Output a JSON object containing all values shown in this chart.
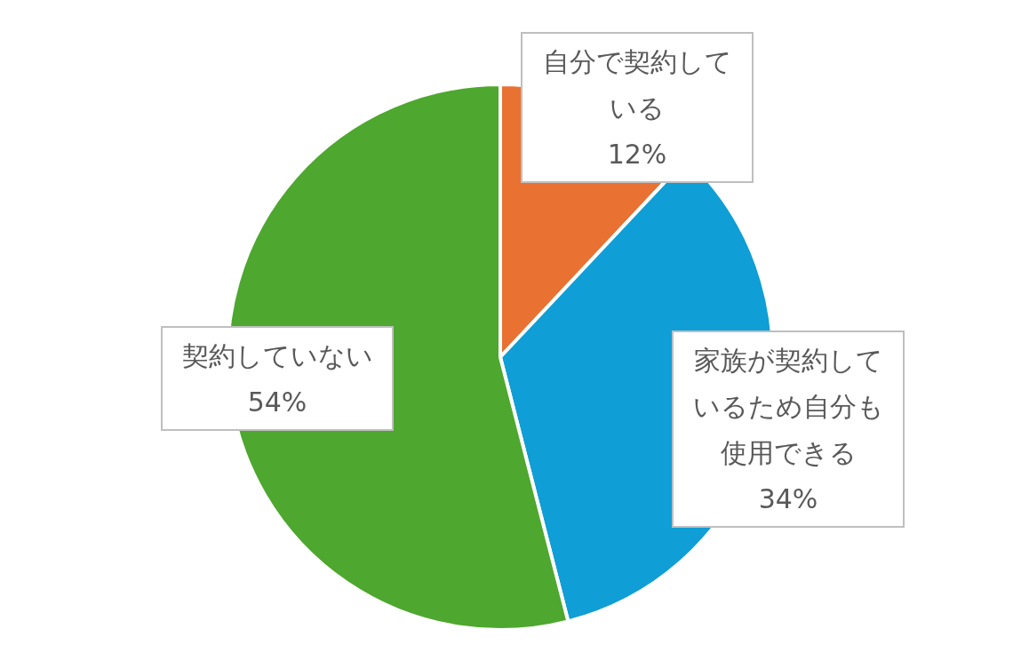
{
  "chart_data": {
    "type": "pie",
    "categories": [
      "自分で契約している",
      "家族が契約しているため自分も使用できる",
      "契約していない"
    ],
    "values": [
      12,
      34,
      54
    ],
    "value_labels": [
      "12%",
      "34%",
      "54%"
    ],
    "colors": [
      "#e97132",
      "#0f9ed5",
      "#4ea72e"
    ]
  }
}
